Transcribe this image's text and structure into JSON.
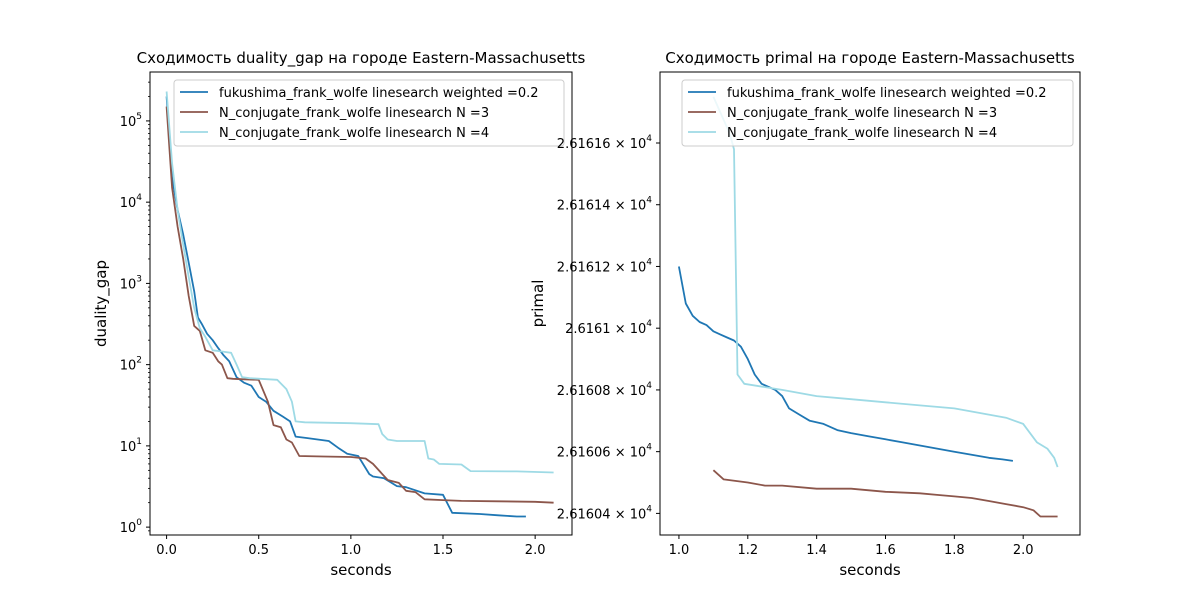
{
  "chart_data": [
    {
      "type": "line",
      "title": "Сходимость duality_gap на городе Eastern-Massachusetts",
      "xlabel": "seconds",
      "ylabel": "duality_gap",
      "yscale": "log",
      "xlim": [
        -0.09,
        2.2
      ],
      "ylim": [
        0.8,
        400000
      ],
      "xticks": [
        0.0,
        0.5,
        1.0,
        1.5,
        2.0
      ],
      "xtick_labels": [
        "0.0",
        "0.5",
        "1.0",
        "1.5",
        "2.0"
      ],
      "yticks": [
        1,
        10,
        100,
        1000,
        10000,
        100000
      ],
      "ytick_labels": [
        {
          "base": "10",
          "exp": "0"
        },
        {
          "base": "10",
          "exp": "1"
        },
        {
          "base": "10",
          "exp": "2"
        },
        {
          "base": "10",
          "exp": "3"
        },
        {
          "base": "10",
          "exp": "4"
        },
        {
          "base": "10",
          "exp": "5"
        }
      ],
      "legend_position": "top-right",
      "series": [
        {
          "name": "fukushima_frank_wolfe linesearch weighted =0.2",
          "color": "#1f77b4",
          "x": [
            0.0,
            0.03,
            0.06,
            0.09,
            0.12,
            0.15,
            0.17,
            0.19,
            0.22,
            0.25,
            0.28,
            0.31,
            0.34,
            0.38,
            0.42,
            0.46,
            0.5,
            0.54,
            0.58,
            0.63,
            0.67,
            0.7,
            0.76,
            0.82,
            0.88,
            0.93,
            0.98,
            1.04,
            1.1,
            1.12,
            1.18,
            1.25,
            1.3,
            1.4,
            1.5,
            1.55,
            1.7,
            1.8,
            1.9,
            1.95
          ],
          "y": [
            200000,
            20000,
            8000,
            4000,
            1800,
            800,
            380,
            320,
            240,
            200,
            160,
            130,
            110,
            70,
            60,
            55,
            40,
            35,
            27,
            23,
            20,
            13,
            12.5,
            12,
            11.5,
            9.5,
            8,
            7.5,
            4.5,
            4.2,
            4,
            3.2,
            3.1,
            2.6,
            2.5,
            1.5,
            1.45,
            1.4,
            1.35,
            1.35
          ]
        },
        {
          "name": "N_conjugate_frank_wolfe linesearch N =3",
          "color": "#8c564b",
          "x": [
            0.0,
            0.03,
            0.06,
            0.09,
            0.12,
            0.15,
            0.18,
            0.21,
            0.25,
            0.28,
            0.3,
            0.33,
            0.36,
            0.42,
            0.5,
            0.55,
            0.58,
            0.62,
            0.65,
            0.68,
            0.72,
            0.85,
            1.0,
            1.08,
            1.12,
            1.2,
            1.26,
            1.3,
            1.35,
            1.4,
            1.5,
            1.6,
            1.8,
            2.0,
            2.1
          ],
          "y": [
            150000,
            15000,
            5000,
            2000,
            700,
            300,
            260,
            150,
            140,
            110,
            100,
            68,
            67,
            66,
            65,
            35,
            18,
            17,
            12,
            11,
            7.5,
            7.4,
            7.3,
            7,
            6,
            3.8,
            3.5,
            2.8,
            2.7,
            2.2,
            2.15,
            2.1,
            2.08,
            2.05,
            2.0
          ]
        },
        {
          "name": "N_conjugate_frank_wolfe linesearch N =4",
          "color": "#9edae5",
          "x": [
            0.0,
            0.03,
            0.06,
            0.09,
            0.12,
            0.15,
            0.18,
            0.21,
            0.25,
            0.3,
            0.35,
            0.38,
            0.41,
            0.45,
            0.6,
            0.65,
            0.68,
            0.7,
            0.75,
            1.0,
            1.15,
            1.17,
            1.2,
            1.25,
            1.4,
            1.42,
            1.45,
            1.48,
            1.6,
            1.65,
            1.9,
            2.1
          ],
          "y": [
            230000,
            30000,
            8000,
            3000,
            1200,
            500,
            280,
            220,
            150,
            145,
            140,
            100,
            70,
            68,
            65,
            50,
            35,
            20,
            19.5,
            19,
            18.5,
            14,
            12,
            11.5,
            11.5,
            7,
            6.8,
            6,
            5.9,
            4.9,
            4.85,
            4.7
          ]
        }
      ]
    },
    {
      "type": "line",
      "title": "Сходимость primal на городе Eastern-Massachusetts",
      "xlabel": "seconds",
      "ylabel": "primal",
      "yscale": "log",
      "xlim": [
        0.945,
        2.165
      ],
      "ylim": [
        26160.33,
        26161.83
      ],
      "xticks": [
        1.0,
        1.2,
        1.4,
        1.6,
        1.8,
        2.0
      ],
      "xtick_labels": [
        "1.0",
        "1.2",
        "1.4",
        "1.6",
        "1.8",
        "2.0"
      ],
      "yticks": [
        26160.4,
        26160.6,
        26160.8,
        26161.0,
        26161.2,
        26161.4,
        26161.6
      ],
      "ytick_labels": [
        {
          "base": "2.61604 × 10",
          "exp": "4"
        },
        {
          "base": "2.61606 × 10",
          "exp": "4"
        },
        {
          "base": "2.61608 × 10",
          "exp": "4"
        },
        {
          "base": "2.6161 × 10",
          "exp": "4"
        },
        {
          "base": "2.61612 × 10",
          "exp": "4"
        },
        {
          "base": "2.61614 × 10",
          "exp": "4"
        },
        {
          "base": "2.61616 × 10",
          "exp": "4"
        }
      ],
      "legend_position": "top-right",
      "series": [
        {
          "name": "fukushima_frank_wolfe linesearch weighted =0.2",
          "color": "#1f77b4",
          "x": [
            1.0,
            1.02,
            1.04,
            1.06,
            1.08,
            1.1,
            1.12,
            1.14,
            1.16,
            1.18,
            1.2,
            1.22,
            1.24,
            1.26,
            1.28,
            1.3,
            1.32,
            1.35,
            1.38,
            1.42,
            1.46,
            1.5,
            1.55,
            1.6,
            1.65,
            1.7,
            1.75,
            1.8,
            1.85,
            1.9,
            1.94,
            1.97
          ],
          "y": [
            26161.2,
            26161.08,
            26161.04,
            26161.02,
            26161.01,
            26160.99,
            26160.98,
            26160.97,
            26160.96,
            26160.94,
            26160.9,
            26160.85,
            26160.82,
            26160.81,
            26160.8,
            26160.78,
            26160.74,
            26160.72,
            26160.7,
            26160.69,
            26160.67,
            26160.66,
            26160.65,
            26160.64,
            26160.63,
            26160.62,
            26160.61,
            26160.6,
            26160.59,
            26160.58,
            26160.575,
            26160.57
          ]
        },
        {
          "name": "N_conjugate_frank_wolfe linesearch N =3",
          "color": "#8c564b",
          "x": [
            1.1,
            1.13,
            1.2,
            1.25,
            1.3,
            1.4,
            1.5,
            1.6,
            1.7,
            1.75,
            1.8,
            1.85,
            1.9,
            1.95,
            2.0,
            2.03,
            2.05,
            2.08,
            2.1
          ],
          "y": [
            26160.54,
            26160.51,
            26160.5,
            26160.49,
            26160.49,
            26160.48,
            26160.48,
            26160.47,
            26160.465,
            26160.46,
            26160.455,
            26160.45,
            26160.44,
            26160.43,
            26160.42,
            26160.41,
            26160.39,
            26160.39,
            26160.39
          ]
        },
        {
          "name": "N_conjugate_frank_wolfe linesearch N =4",
          "color": "#9edae5",
          "x": [
            1.1,
            1.12,
            1.14,
            1.15,
            1.16,
            1.17,
            1.19,
            1.3,
            1.4,
            1.5,
            1.6,
            1.7,
            1.8,
            1.85,
            1.9,
            1.95,
            2.0,
            2.04,
            2.07,
            2.09,
            2.1
          ],
          "y": [
            26161.75,
            26161.7,
            26161.65,
            26161.62,
            26161.58,
            26160.85,
            26160.82,
            26160.8,
            26160.78,
            26160.77,
            26160.76,
            26160.75,
            26160.74,
            26160.73,
            26160.72,
            26160.71,
            26160.69,
            26160.63,
            26160.61,
            26160.58,
            26160.55
          ]
        }
      ]
    }
  ]
}
